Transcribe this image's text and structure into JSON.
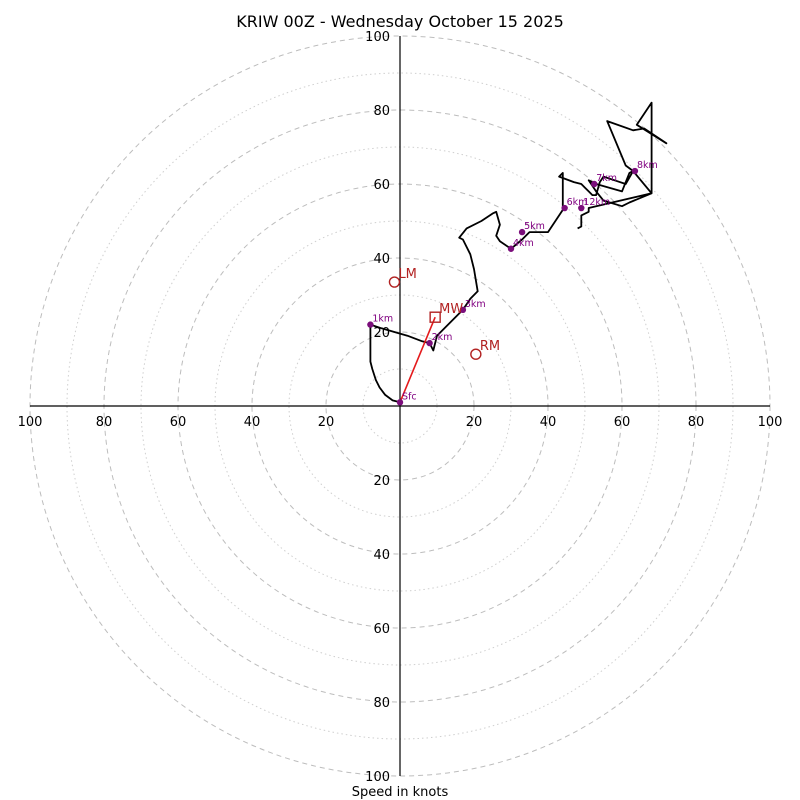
{
  "chart_data": {
    "type": "scatter",
    "subtype": "hodograph",
    "title": "KRIW 00Z - Wednesday October 15 2025",
    "xlabel": "Speed in knots",
    "ylabel": "",
    "xlim": [
      -100,
      100
    ],
    "ylim": [
      -100,
      100
    ],
    "ring_major_step": 20,
    "ring_minor_step": 10,
    "axis_tick_values": [
      100,
      80,
      60,
      40,
      20
    ],
    "axis_tick_labels": {
      "x_left": [
        "100",
        "80",
        "60",
        "40",
        "20"
      ],
      "x_right": [
        "20",
        "40",
        "60",
        "80",
        "100"
      ],
      "y_top": [
        "100",
        "80",
        "60",
        "40",
        "20"
      ],
      "y_bottom": [
        "20",
        "40",
        "60",
        "80",
        "100"
      ]
    },
    "hodograph_trace": [
      [
        0,
        1
      ],
      [
        -2,
        1.5
      ],
      [
        -4,
        3
      ],
      [
        -5.5,
        5
      ],
      [
        -6.5,
        7
      ],
      [
        -7.5,
        10
      ],
      [
        -8,
        12
      ],
      [
        -8,
        16
      ],
      [
        -8,
        22
      ],
      [
        -5,
        21
      ],
      [
        -1.5,
        20
      ],
      [
        2,
        19
      ],
      [
        6,
        17.5
      ],
      [
        8,
        17
      ],
      [
        9,
        15
      ],
      [
        10,
        19
      ],
      [
        14,
        23
      ],
      [
        17,
        26
      ],
      [
        19,
        29
      ],
      [
        21,
        31
      ],
      [
        20,
        37
      ],
      [
        19,
        41
      ],
      [
        17,
        45
      ],
      [
        16,
        45.5
      ],
      [
        18,
        48
      ],
      [
        22,
        50
      ],
      [
        25,
        52
      ],
      [
        26,
        52.5
      ],
      [
        27,
        49
      ],
      [
        26,
        46
      ],
      [
        27,
        44.5
      ],
      [
        30,
        42.5
      ],
      [
        33,
        45
      ],
      [
        35,
        47
      ],
      [
        40,
        47
      ],
      [
        44,
        53
      ],
      [
        44,
        63
      ],
      [
        43,
        62
      ],
      [
        47,
        60.5
      ],
      [
        49,
        60
      ],
      [
        50,
        59
      ],
      [
        51,
        58
      ],
      [
        52,
        57
      ],
      [
        53,
        57
      ],
      [
        54,
        60.5
      ],
      [
        55,
        62
      ],
      [
        58,
        61
      ],
      [
        61,
        60
      ],
      [
        63,
        63.5
      ],
      [
        68,
        57.5
      ],
      [
        68,
        82
      ],
      [
        64,
        76
      ],
      [
        72,
        71
      ],
      [
        66,
        75
      ],
      [
        63,
        74.5
      ],
      [
        56,
        77
      ],
      [
        61,
        65
      ],
      [
        63,
        63.5
      ],
      [
        62,
        63
      ],
      [
        60,
        58
      ],
      [
        53,
        60
      ],
      [
        51,
        61
      ],
      [
        53,
        58
      ],
      [
        55,
        55.5
      ],
      [
        60,
        54
      ],
      [
        62,
        55
      ],
      [
        68,
        57.5
      ],
      [
        51,
        53.5
      ],
      [
        51,
        52.5
      ],
      [
        49,
        51.5
      ],
      [
        49,
        48.5
      ],
      [
        48,
        48
      ]
    ],
    "height_markers": [
      {
        "label": "Sfc",
        "u": 0,
        "v": 1
      },
      {
        "label": "1km",
        "u": -8,
        "v": 22
      },
      {
        "label": "2km",
        "u": 8,
        "v": 17
      },
      {
        "label": "3km",
        "u": 17,
        "v": 26
      },
      {
        "label": "4km",
        "u": 30,
        "v": 42.5
      },
      {
        "label": "5km",
        "u": 33,
        "v": 47
      },
      {
        "label": "6km",
        "u": 44.5,
        "v": 53.5
      },
      {
        "label": "7km",
        "u": 52.5,
        "v": 60
      },
      {
        "label": "8km",
        "u": 63.5,
        "v": 63.5
      },
      {
        "label": "12km",
        "u": 49,
        "v": 53.5
      }
    ],
    "storm_motion": {
      "LM": {
        "label": "LM",
        "u": -1.5,
        "v": 33.5
      },
      "RM": {
        "label": "RM",
        "u": 20.5,
        "v": 14
      },
      "MW": {
        "label": "MW",
        "u": 9.5,
        "v": 24
      }
    },
    "mean_wind_vector": {
      "from": [
        0,
        1
      ],
      "to": [
        9.5,
        24
      ]
    },
    "colors": {
      "trace": "#000000",
      "height_marker": "#7b0e7b",
      "height_label": "#800080",
      "storm_motion": "#b22222",
      "mean_wind_vector": "#e41a1c",
      "grid": "#bdbdbd"
    }
  }
}
